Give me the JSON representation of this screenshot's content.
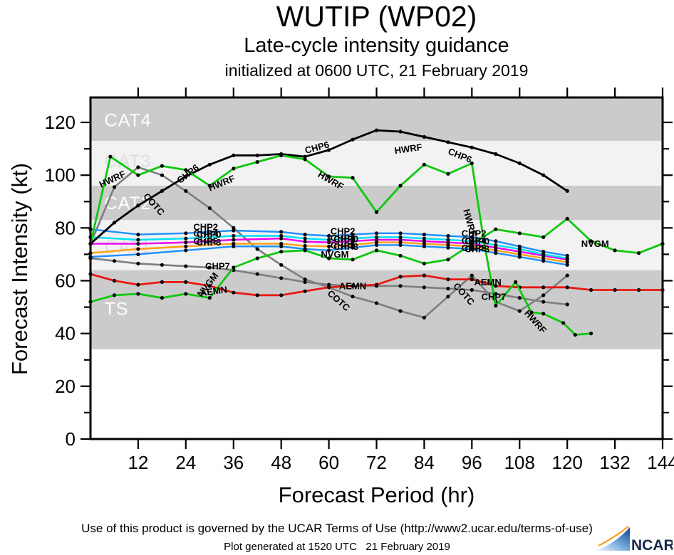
{
  "header": {
    "title": "WUTIP (WP02)",
    "subtitle": "Late-cycle intensity guidance",
    "initialized": "initialized at 0600 UTC, 21 February 2019"
  },
  "footer": {
    "terms": "Use of this product is governed by the UCAR Terms of Use (http://www2.ucar.edu/terms-of-use)",
    "generated": "Plot generated at 1520 UTC   21 February 2019",
    "logo_text": "NCAR"
  },
  "chart_data": {
    "type": "line",
    "title": "WUTIP (WP02)",
    "xlabel": "Forecast Period (hr)",
    "ylabel": "Forecast Intensity (kt)",
    "xlim": [
      0,
      144
    ],
    "ylim": [
      0,
      129.4
    ],
    "x_ticks": [
      12,
      24,
      36,
      48,
      60,
      72,
      84,
      96,
      108,
      120,
      132,
      144
    ],
    "y_ticks_major": [
      0,
      20,
      40,
      60,
      80,
      100,
      120
    ],
    "y_ticks_minor": [
      10,
      30,
      50,
      70,
      90,
      110
    ],
    "grid": false,
    "legend": "inline-labels",
    "band_label_hr": 3.5,
    "bands": [
      {
        "label": "TS",
        "from": 34,
        "to": 64,
        "fill": "#cbcbcb",
        "label_color": "#ffffff",
        "label_kt": 49.5
      },
      {
        "label": "CAT1",
        "from": 64,
        "to": 83,
        "fill": "#f2f2f2",
        "label_color": "#dedede",
        "label_kt": 73
      },
      {
        "label": "CAT2",
        "from": 83,
        "to": 96,
        "fill": "#cbcbcb",
        "label_color": "#ffffff",
        "label_kt": 89.5
      },
      {
        "label": "CAT3",
        "from": 96,
        "to": 113,
        "fill": "#f2f2f2",
        "label_color": "#dedede",
        "label_kt": 105.5
      },
      {
        "label": "CAT4",
        "from": 113,
        "to": 129.4,
        "fill": "#cbcbcb",
        "label_color": "#ffffff",
        "label_kt": 121
      }
    ],
    "series": [
      {
        "name": "COTC",
        "color": "#7e7e7e",
        "width": 2.6,
        "points": [
          [
            0,
            74
          ],
          [
            6,
            95.5
          ],
          [
            12,
            103
          ],
          [
            18,
            100
          ],
          [
            24,
            94
          ],
          [
            30,
            87.5
          ],
          [
            36,
            80
          ],
          [
            42,
            72
          ],
          [
            48,
            66
          ],
          [
            54,
            60.5
          ],
          [
            60,
            57.5
          ],
          [
            66,
            54
          ],
          [
            72,
            51.5
          ],
          [
            78,
            48.5
          ],
          [
            84,
            46
          ],
          [
            90,
            54
          ],
          [
            96,
            62
          ],
          [
            102,
            52
          ],
          [
            108,
            48.5
          ],
          [
            114,
            54.5
          ],
          [
            120,
            62
          ]
        ]
      },
      {
        "name": "CHP7",
        "color": "#7e7e7e",
        "width": 2.6,
        "points": [
          [
            0,
            68.5
          ],
          [
            6,
            67.5
          ],
          [
            12,
            66.5
          ],
          [
            18,
            66
          ],
          [
            24,
            65.5
          ],
          [
            30,
            65
          ],
          [
            36,
            64
          ],
          [
            42,
            62.5
          ],
          [
            48,
            61
          ],
          [
            54,
            59.5
          ],
          [
            60,
            58.5
          ],
          [
            66,
            58
          ],
          [
            72,
            58
          ],
          [
            78,
            58
          ],
          [
            84,
            57.5
          ],
          [
            90,
            57
          ],
          [
            96,
            56.5
          ],
          [
            102,
            55
          ],
          [
            108,
            53.5
          ],
          [
            114,
            52
          ],
          [
            120,
            51
          ]
        ]
      },
      {
        "name": "AEMN",
        "color": "#e81810",
        "width": 2.8,
        "points": [
          [
            0,
            62.5
          ],
          [
            6,
            60
          ],
          [
            12,
            58.5
          ],
          [
            18,
            59.5
          ],
          [
            24,
            59.5
          ],
          [
            30,
            58
          ],
          [
            36,
            55.5
          ],
          [
            42,
            54.5
          ],
          [
            48,
            54.5
          ],
          [
            54,
            56
          ],
          [
            60,
            57.5
          ],
          [
            66,
            58
          ],
          [
            72,
            58.5
          ],
          [
            78,
            61.5
          ],
          [
            84,
            62
          ],
          [
            90,
            60.5
          ],
          [
            96,
            60.5
          ],
          [
            102,
            58
          ],
          [
            108,
            57.5
          ],
          [
            114,
            57.5
          ],
          [
            120,
            57.5
          ],
          [
            126,
            56.5
          ],
          [
            132,
            56.5
          ],
          [
            138,
            56.5
          ],
          [
            144,
            56.5
          ]
        ]
      },
      {
        "name": "NVGM",
        "color": "#0ec80e",
        "width": 2.8,
        "points": [
          [
            0,
            52
          ],
          [
            6,
            54.5
          ],
          [
            12,
            55
          ],
          [
            18,
            53.5
          ],
          [
            24,
            55
          ],
          [
            30,
            53.5
          ],
          [
            36,
            65
          ],
          [
            42,
            68.5
          ],
          [
            48,
            71
          ],
          [
            54,
            71.5
          ],
          [
            60,
            68.5
          ],
          [
            66,
            68
          ],
          [
            72,
            71.5
          ],
          [
            78,
            69.5
          ],
          [
            84,
            66.5
          ],
          [
            90,
            68
          ],
          [
            96,
            74
          ],
          [
            102,
            79.5
          ],
          [
            108,
            78
          ],
          [
            114,
            76.5
          ],
          [
            120,
            83.5
          ],
          [
            126,
            75
          ],
          [
            132,
            71.5
          ],
          [
            138,
            70.5
          ],
          [
            144,
            74
          ]
        ]
      },
      {
        "name": "CHP3",
        "color": "#1e90ff",
        "width": 2.4,
        "points": [
          [
            0,
            69
          ],
          [
            12,
            70
          ],
          [
            24,
            71.5
          ],
          [
            36,
            73
          ],
          [
            48,
            73
          ],
          [
            54,
            72
          ],
          [
            60,
            71.5
          ],
          [
            66,
            72.5
          ],
          [
            72,
            73.5
          ],
          [
            78,
            73.5
          ],
          [
            84,
            73
          ],
          [
            90,
            72.5
          ],
          [
            96,
            72
          ],
          [
            102,
            70.5
          ],
          [
            108,
            69
          ],
          [
            114,
            67.5
          ],
          [
            120,
            66
          ]
        ]
      },
      {
        "name": "CHP5",
        "color": "#ffa015",
        "width": 2.4,
        "points": [
          [
            0,
            70.5
          ],
          [
            12,
            72
          ],
          [
            24,
            73
          ],
          [
            36,
            74
          ],
          [
            48,
            74
          ],
          [
            54,
            73.2
          ],
          [
            60,
            73
          ],
          [
            66,
            73.5
          ],
          [
            72,
            74.5
          ],
          [
            78,
            74.5
          ],
          [
            84,
            74
          ],
          [
            90,
            73.5
          ],
          [
            96,
            73
          ],
          [
            102,
            71.5
          ],
          [
            108,
            70
          ],
          [
            114,
            68.5
          ],
          [
            120,
            67
          ]
        ]
      },
      {
        "name": "CHP0",
        "color": "#ee00ee",
        "width": 2.4,
        "points": [
          [
            0,
            74
          ],
          [
            12,
            74
          ],
          [
            24,
            74.5
          ],
          [
            36,
            75.5
          ],
          [
            48,
            76
          ],
          [
            54,
            74.8
          ],
          [
            60,
            74.5
          ],
          [
            66,
            75
          ],
          [
            72,
            75.5
          ],
          [
            78,
            75.5
          ],
          [
            84,
            75
          ],
          [
            90,
            74.5
          ],
          [
            96,
            74
          ],
          [
            102,
            72.5
          ],
          [
            108,
            71
          ],
          [
            114,
            69.5
          ],
          [
            120,
            68
          ]
        ]
      },
      {
        "name": "CHP4",
        "color": "#00e0f5",
        "width": 2.4,
        "points": [
          [
            0,
            76.5
          ],
          [
            12,
            75.5
          ],
          [
            24,
            76
          ],
          [
            36,
            77
          ],
          [
            48,
            77
          ],
          [
            54,
            76
          ],
          [
            60,
            75.5
          ],
          [
            66,
            76
          ],
          [
            72,
            76.5
          ],
          [
            78,
            76.5
          ],
          [
            84,
            76
          ],
          [
            90,
            75.5
          ],
          [
            96,
            75
          ],
          [
            102,
            73.5
          ],
          [
            108,
            72
          ],
          [
            114,
            70
          ],
          [
            120,
            68.5
          ]
        ]
      },
      {
        "name": "CHP2",
        "color": "#1e90ff",
        "width": 2.4,
        "points": [
          [
            0,
            79.5
          ],
          [
            12,
            77.5
          ],
          [
            24,
            78
          ],
          [
            36,
            79
          ],
          [
            48,
            78.5
          ],
          [
            54,
            77.5
          ],
          [
            60,
            77
          ],
          [
            66,
            77.5
          ],
          [
            72,
            78
          ],
          [
            78,
            78
          ],
          [
            84,
            77.5
          ],
          [
            90,
            77
          ],
          [
            96,
            76.5
          ],
          [
            102,
            75
          ],
          [
            108,
            73
          ],
          [
            114,
            71
          ],
          [
            120,
            69.5
          ]
        ]
      },
      {
        "name": "CHP6",
        "color": "#000000",
        "width": 2.8,
        "points": [
          [
            0,
            74
          ],
          [
            6,
            82
          ],
          [
            12,
            88.5
          ],
          [
            18,
            94
          ],
          [
            24,
            99.5
          ],
          [
            30,
            104
          ],
          [
            36,
            107.5
          ],
          [
            42,
            107.5
          ],
          [
            48,
            108
          ],
          [
            54,
            107
          ],
          [
            60,
            109.5
          ],
          [
            66,
            113.5
          ],
          [
            72,
            117
          ],
          [
            78,
            116.5
          ],
          [
            84,
            114.5
          ],
          [
            90,
            112.5
          ],
          [
            96,
            110.5
          ],
          [
            102,
            108
          ],
          [
            108,
            104.5
          ],
          [
            114,
            100
          ],
          [
            120,
            94
          ]
        ]
      },
      {
        "name": "HWRF",
        "color": "#0ec80e",
        "width": 2.8,
        "points": [
          [
            0,
            74
          ],
          [
            5,
            107
          ],
          [
            12,
            100
          ],
          [
            18,
            103.5
          ],
          [
            24,
            102
          ],
          [
            30,
            96
          ],
          [
            36,
            102.5
          ],
          [
            42,
            105
          ],
          [
            48,
            107.5
          ],
          [
            54,
            106
          ],
          [
            60,
            99.5
          ],
          [
            66,
            99
          ],
          [
            72,
            86
          ],
          [
            78,
            96
          ],
          [
            84,
            104
          ],
          [
            90,
            100.5
          ],
          [
            96,
            104.5
          ],
          [
            99,
            75
          ],
          [
            102,
            50.5
          ],
          [
            107,
            59.5
          ],
          [
            111,
            48
          ],
          [
            114,
            47.5
          ],
          [
            119,
            44
          ],
          [
            122,
            39.5
          ],
          [
            126,
            40
          ]
        ]
      }
    ],
    "line_labels": [
      {
        "text": "HWRF",
        "hr": 5.5,
        "kt": 98.5,
        "rot": -25
      },
      {
        "text": "CHP6",
        "hr": 24.5,
        "kt": 100.5,
        "rot": -38
      },
      {
        "text": "HWRF",
        "hr": 33,
        "kt": 97,
        "rot": -22
      },
      {
        "text": "COTC",
        "hr": 16,
        "kt": 89,
        "rot": 48
      },
      {
        "text": "CHP6",
        "hr": 57,
        "kt": 110.5,
        "rot": -15
      },
      {
        "text": "HWRF",
        "hr": 60.5,
        "kt": 98,
        "rot": 30
      },
      {
        "text": "HWRF",
        "hr": 80,
        "kt": 110,
        "rot": -8
      },
      {
        "text": "CHP6",
        "hr": 93,
        "kt": 107.5,
        "rot": 22
      },
      {
        "text": "HWRF",
        "hr": 95.5,
        "kt": 82,
        "rot": 75
      },
      {
        "text": "HWRF",
        "hr": 112,
        "kt": 44.5,
        "rot": 48
      },
      {
        "text": "NVGM",
        "hr": 29.5,
        "kt": 58.5,
        "rot": -52
      },
      {
        "text": "CHP7",
        "hr": 32,
        "kt": 65.5,
        "rot": 0
      },
      {
        "text": "AEMN",
        "hr": 31,
        "kt": 56,
        "rot": -8
      },
      {
        "text": "NVGM",
        "hr": 61.5,
        "kt": 70,
        "rot": 0
      },
      {
        "text": "COTC",
        "hr": 62.5,
        "kt": 52.5,
        "rot": 42
      },
      {
        "text": "AEMN",
        "hr": 66,
        "kt": 58,
        "rot": 0
      },
      {
        "text": "COTC",
        "hr": 94,
        "kt": 55,
        "rot": 48
      },
      {
        "text": "AEMN",
        "hr": 100,
        "kt": 59.5,
        "rot": 0
      },
      {
        "text": "CHP7",
        "hr": 101.5,
        "kt": 54,
        "rot": 0
      },
      {
        "text": "NVGM",
        "hr": 127,
        "kt": 74,
        "rot": 0
      },
      {
        "text": "CHP2",
        "hr": 29,
        "kt": 80.3,
        "rot": 0
      },
      {
        "text": "CHP4",
        "hr": 29,
        "kt": 77.9,
        "rot": 0
      },
      {
        "text": "CHP0",
        "hr": 29.8,
        "kt": 77.5,
        "rot": 0
      },
      {
        "text": "CHP5",
        "hr": 29,
        "kt": 74.9,
        "rot": 0
      },
      {
        "text": "CHP3",
        "hr": 29.8,
        "kt": 74.5,
        "rot": 0
      },
      {
        "text": "CHP2",
        "hr": 63.5,
        "kt": 78.8,
        "rot": 0
      },
      {
        "text": "CHP4",
        "hr": 63.5,
        "kt": 76.2,
        "rot": 0
      },
      {
        "text": "CHP0",
        "hr": 64.3,
        "kt": 75.8,
        "rot": 0
      },
      {
        "text": "CHP5",
        "hr": 63.5,
        "kt": 73.4,
        "rot": 0
      },
      {
        "text": "CHP3",
        "hr": 64.3,
        "kt": 73,
        "rot": 0
      },
      {
        "text": "CHP2",
        "hr": 96.5,
        "kt": 77.9,
        "rot": 0
      },
      {
        "text": "CHP4",
        "hr": 96.5,
        "kt": 75.3,
        "rot": 0
      },
      {
        "text": "CHP0",
        "hr": 97.3,
        "kt": 74.9,
        "rot": 0
      },
      {
        "text": "CHP5",
        "hr": 96.5,
        "kt": 72.4,
        "rot": 0
      },
      {
        "text": "CHP3",
        "hr": 97.3,
        "kt": 72,
        "rot": 0
      }
    ]
  }
}
